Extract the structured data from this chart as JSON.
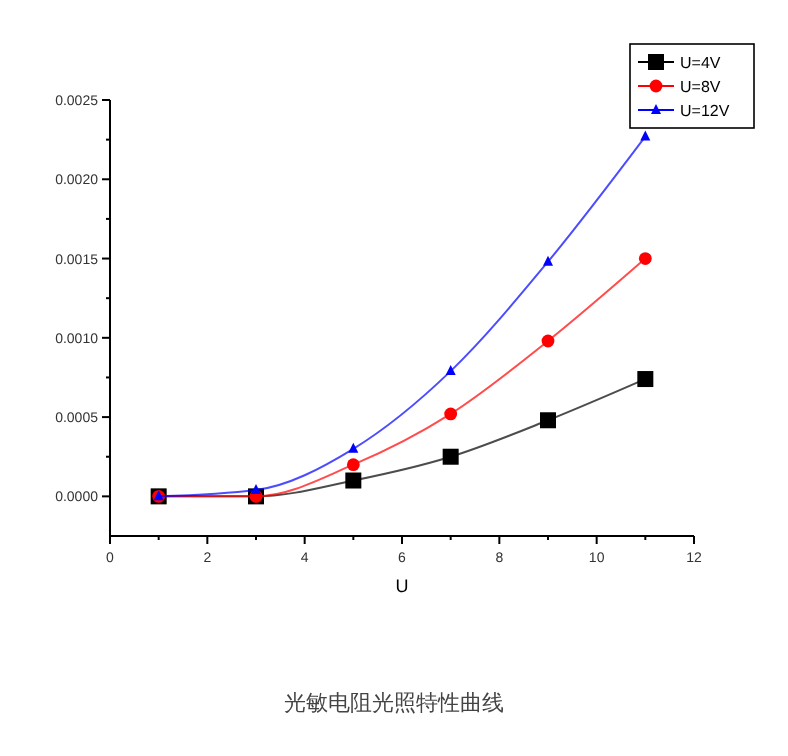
{
  "chart_data": {
    "type": "line",
    "title": "光敏电阻光照特性曲线",
    "xlabel": "U",
    "x": [
      1,
      3,
      5,
      7,
      9,
      11
    ],
    "series": [
      {
        "name": "U=4V",
        "color": "#000000",
        "marker": "square",
        "values": [
          0,
          0,
          0.0001,
          0.00025,
          0.00048,
          0.00074
        ]
      },
      {
        "name": "U=8V",
        "color": "#ff0000",
        "marker": "circle",
        "values": [
          0,
          0,
          0.0002,
          0.00052,
          0.00098,
          0.0015
        ]
      },
      {
        "name": "U=12V",
        "color": "#0000ff",
        "marker": "triangle",
        "values": [
          0,
          4e-05,
          0.0003,
          0.00079,
          0.00148,
          0.00227
        ]
      }
    ],
    "xlim": [
      0,
      12
    ],
    "xticks": [
      0,
      2,
      4,
      6,
      8,
      10,
      12
    ],
    "ylim": [
      -0.00025,
      0.0025
    ],
    "yticks": [
      {
        "value": 0,
        "label": "0.0000"
      },
      {
        "value": 0.0005,
        "label": "0.0005"
      },
      {
        "value": 0.001,
        "label": "0.0010"
      },
      {
        "value": 0.0015,
        "label": "0.0015"
      },
      {
        "value": 0.002,
        "label": "0.0020"
      },
      {
        "value": 0.0025,
        "label": "0.0025"
      }
    ],
    "grid": false,
    "legend": "top right",
    "line_style": "solid"
  }
}
